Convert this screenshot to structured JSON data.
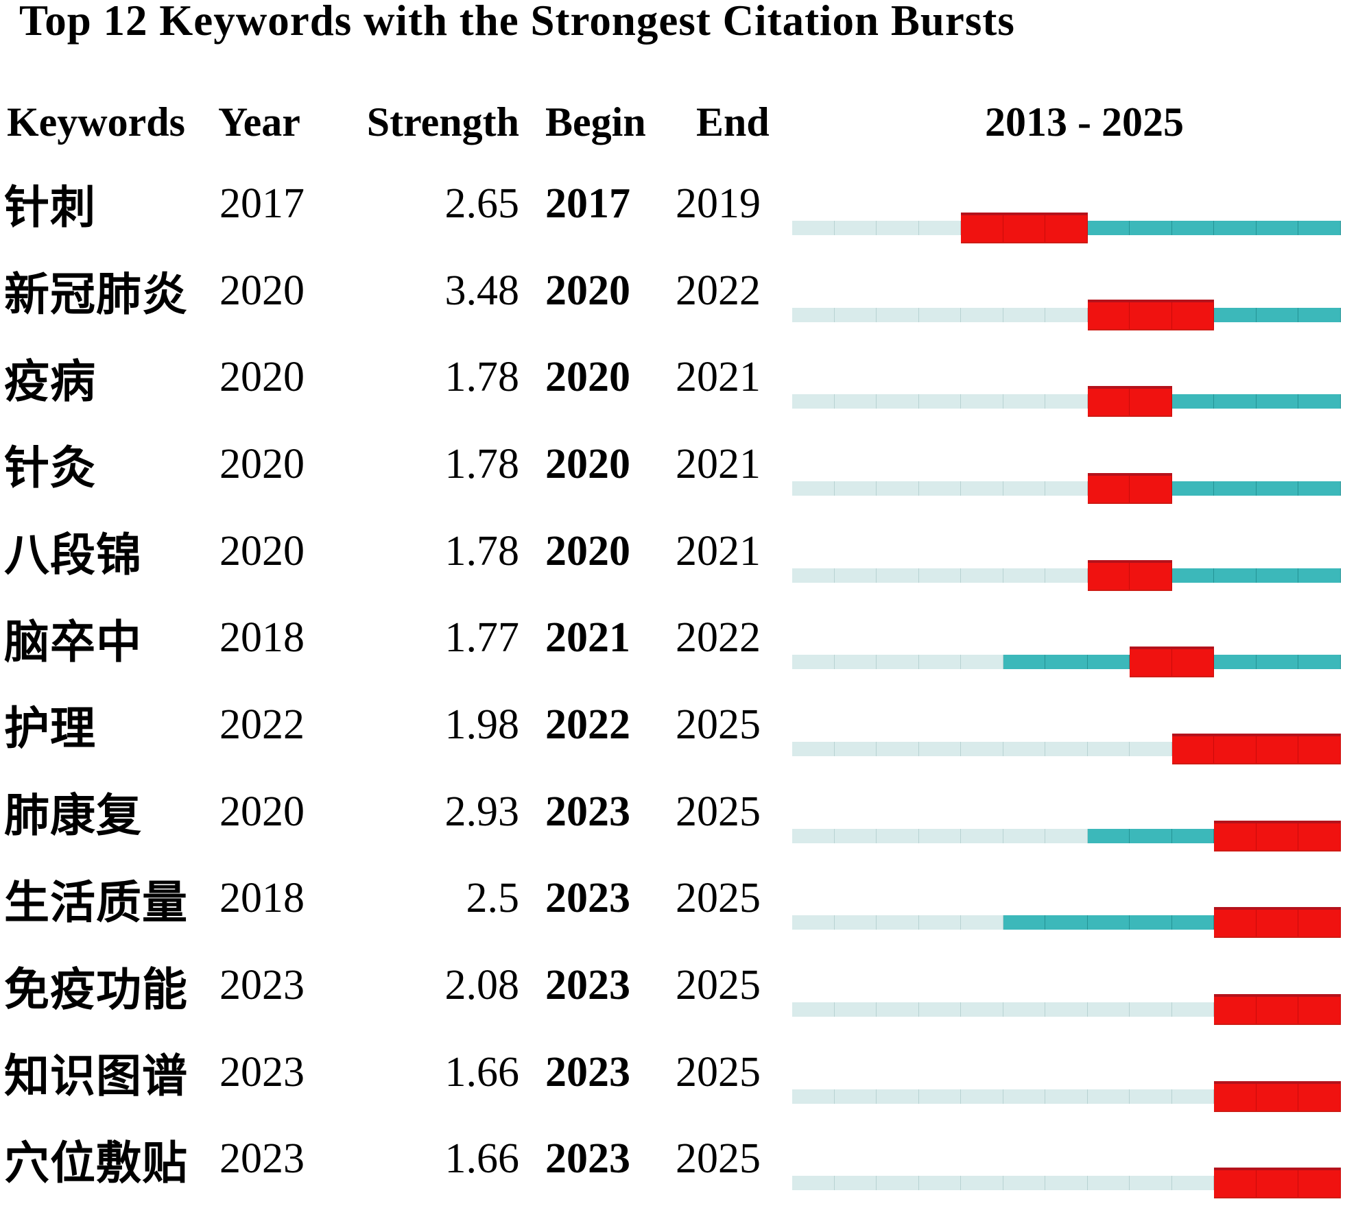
{
  "title": "Top 12 Keywords with the Strongest Citation Bursts",
  "columns": {
    "keywords": "Keywords",
    "year": "Year",
    "strength": "Strength",
    "begin": "Begin",
    "end": "End",
    "range": "2013 - 2025"
  },
  "timeline": {
    "start_year": 2013,
    "end_year": 2025
  },
  "colors": {
    "pre_appearance": "#d9ebeb",
    "active": "#3cb8ba",
    "burst": "#f01210"
  },
  "legend_semantics": {
    "pre_appearance": "years before keyword first appears (pale band)",
    "active": "keyword active, no burst (teal band)",
    "burst": "citation burst interval (red band)"
  },
  "chart_data": {
    "type": "table",
    "title": "Top 12 Keywords with the Strongest Citation Bursts",
    "range_label": "2013 - 2025",
    "axis_years": [
      2013,
      2025
    ],
    "columns": [
      "Keywords",
      "Year",
      "Strength",
      "Begin",
      "End"
    ],
    "rows": [
      {
        "keyword": "针刺",
        "year": 2017,
        "strength": "2.65",
        "begin": 2017,
        "end": 2019
      },
      {
        "keyword": "新冠肺炎",
        "year": 2020,
        "strength": "3.48",
        "begin": 2020,
        "end": 2022
      },
      {
        "keyword": "疫病",
        "year": 2020,
        "strength": "1.78",
        "begin": 2020,
        "end": 2021
      },
      {
        "keyword": "针灸",
        "year": 2020,
        "strength": "1.78",
        "begin": 2020,
        "end": 2021
      },
      {
        "keyword": "八段锦",
        "year": 2020,
        "strength": "1.78",
        "begin": 2020,
        "end": 2021
      },
      {
        "keyword": "脑卒中",
        "year": 2018,
        "strength": "1.77",
        "begin": 2021,
        "end": 2022
      },
      {
        "keyword": "护理",
        "year": 2022,
        "strength": "1.98",
        "begin": 2022,
        "end": 2025
      },
      {
        "keyword": "肺康复",
        "year": 2020,
        "strength": "2.93",
        "begin": 2023,
        "end": 2025
      },
      {
        "keyword": "生活质量",
        "year": 2018,
        "strength": "2.5",
        "begin": 2023,
        "end": 2025
      },
      {
        "keyword": "免疫功能",
        "year": 2023,
        "strength": "2.08",
        "begin": 2023,
        "end": 2025
      },
      {
        "keyword": "知识图谱",
        "year": 2023,
        "strength": "1.66",
        "begin": 2023,
        "end": 2025
      },
      {
        "keyword": "穴位敷贴",
        "year": 2023,
        "strength": "1.66",
        "begin": 2023,
        "end": 2025
      }
    ]
  }
}
